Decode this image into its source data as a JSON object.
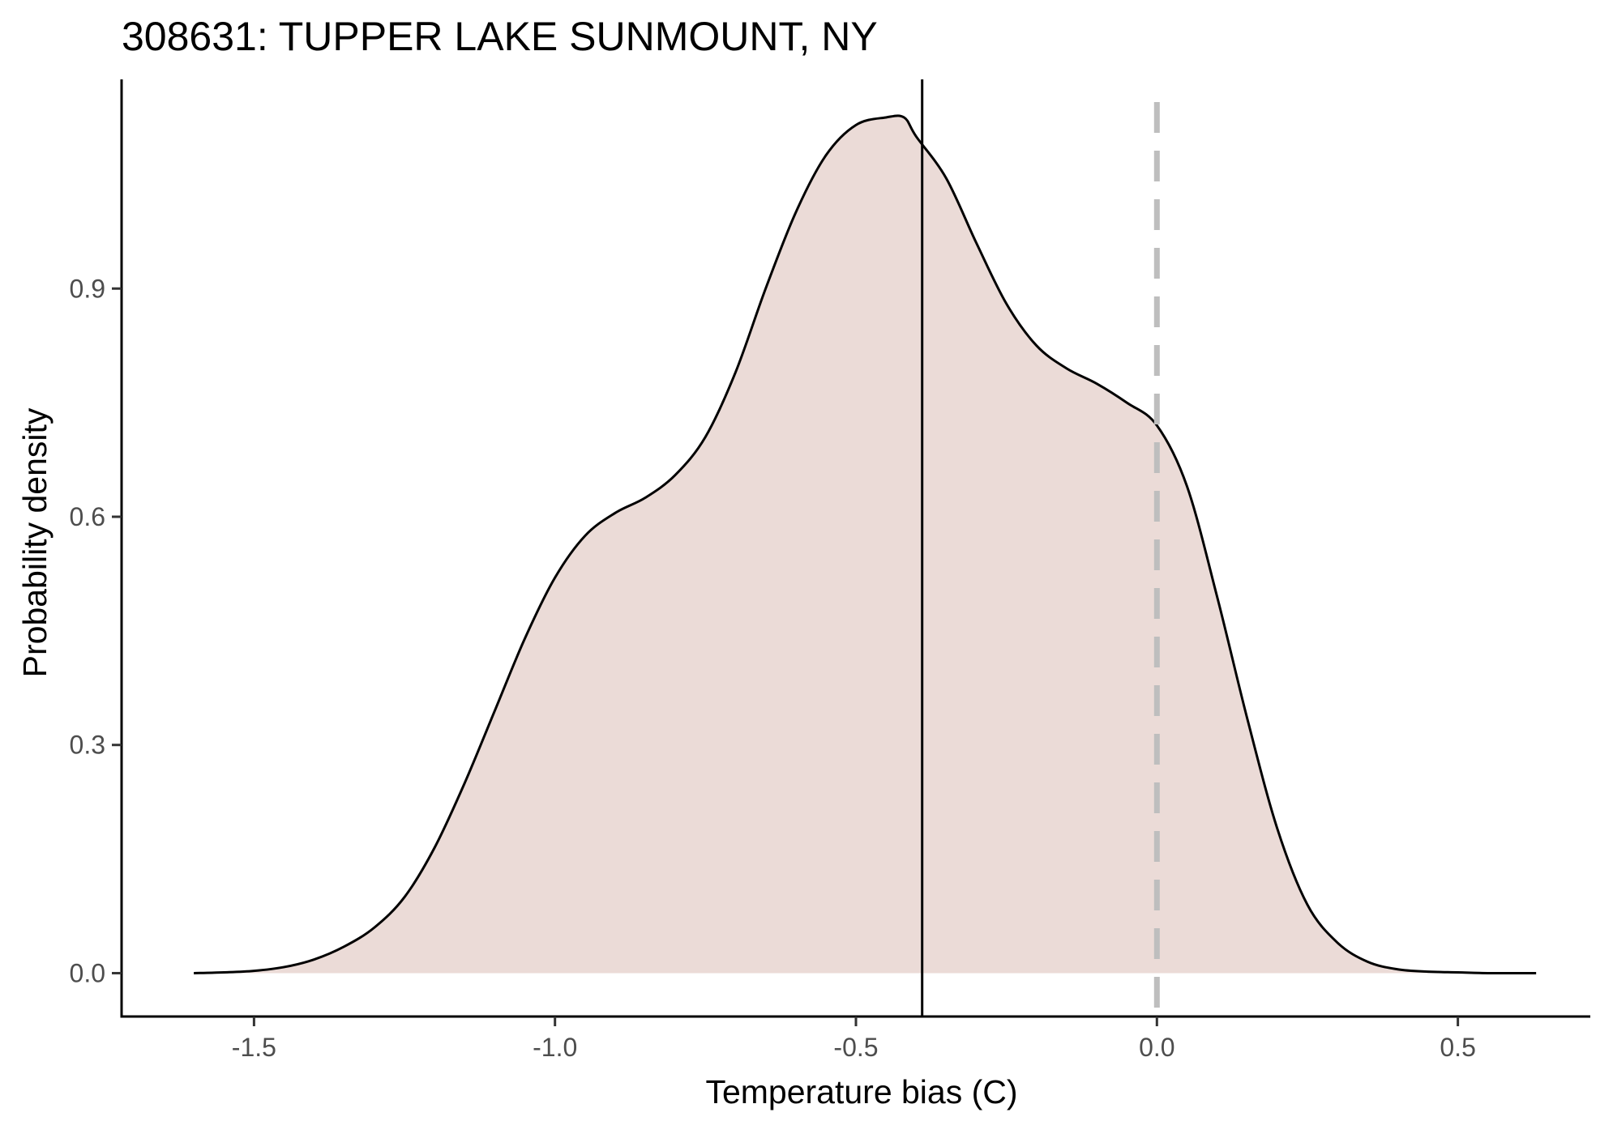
{
  "chart_data": {
    "type": "area",
    "title": "308631: TUPPER LAKE SUNMOUNT, NY",
    "xlabel": "Temperature bias (C)",
    "ylabel": "Probability density",
    "xlim": [
      -1.72,
      0.72
    ],
    "ylim": [
      -0.057,
      1.175
    ],
    "x_ticks": [
      -1.5,
      -1.0,
      -0.5,
      0.0,
      0.5
    ],
    "x_tick_labels": [
      "-1.5",
      "-1.0",
      "-0.5",
      "0.0",
      "0.5"
    ],
    "y_ticks": [
      0.0,
      0.3,
      0.6,
      0.9
    ],
    "y_tick_labels": [
      "0.0",
      "0.3",
      "0.6",
      "0.9"
    ],
    "grid": false,
    "legend": "none",
    "fill_color": "#ebdbd7",
    "line_color": "#000000",
    "reference_lines": [
      {
        "x": -0.39,
        "style": "solid",
        "color": "#000000"
      },
      {
        "x": 0.0,
        "style": "dashed",
        "color": "#bebebe"
      }
    ],
    "series": [
      {
        "x": [
          -1.6,
          -1.55,
          -1.5,
          -1.45,
          -1.4,
          -1.35,
          -1.3,
          -1.25,
          -1.2,
          -1.15,
          -1.1,
          -1.05,
          -1.0,
          -0.95,
          -0.9,
          -0.85,
          -0.8,
          -0.75,
          -0.7,
          -0.65,
          -0.6,
          -0.55,
          -0.5,
          -0.45,
          -0.42,
          -0.4,
          -0.35,
          -0.3,
          -0.25,
          -0.2,
          -0.15,
          -0.1,
          -0.05,
          0.0,
          0.05,
          0.1,
          0.15,
          0.2,
          0.25,
          0.3,
          0.35,
          0.4,
          0.45,
          0.5,
          0.55,
          0.6,
          0.63
        ],
        "y": [
          0.0,
          0.001,
          0.003,
          0.008,
          0.018,
          0.035,
          0.06,
          0.1,
          0.165,
          0.25,
          0.345,
          0.44,
          0.52,
          0.575,
          0.605,
          0.625,
          0.655,
          0.705,
          0.79,
          0.9,
          1.0,
          1.075,
          1.115,
          1.125,
          1.125,
          1.1,
          1.045,
          0.96,
          0.88,
          0.825,
          0.795,
          0.775,
          0.75,
          0.72,
          0.64,
          0.495,
          0.335,
          0.19,
          0.09,
          0.04,
          0.015,
          0.005,
          0.002,
          0.001,
          0.0,
          0.0,
          0.0
        ]
      }
    ]
  }
}
